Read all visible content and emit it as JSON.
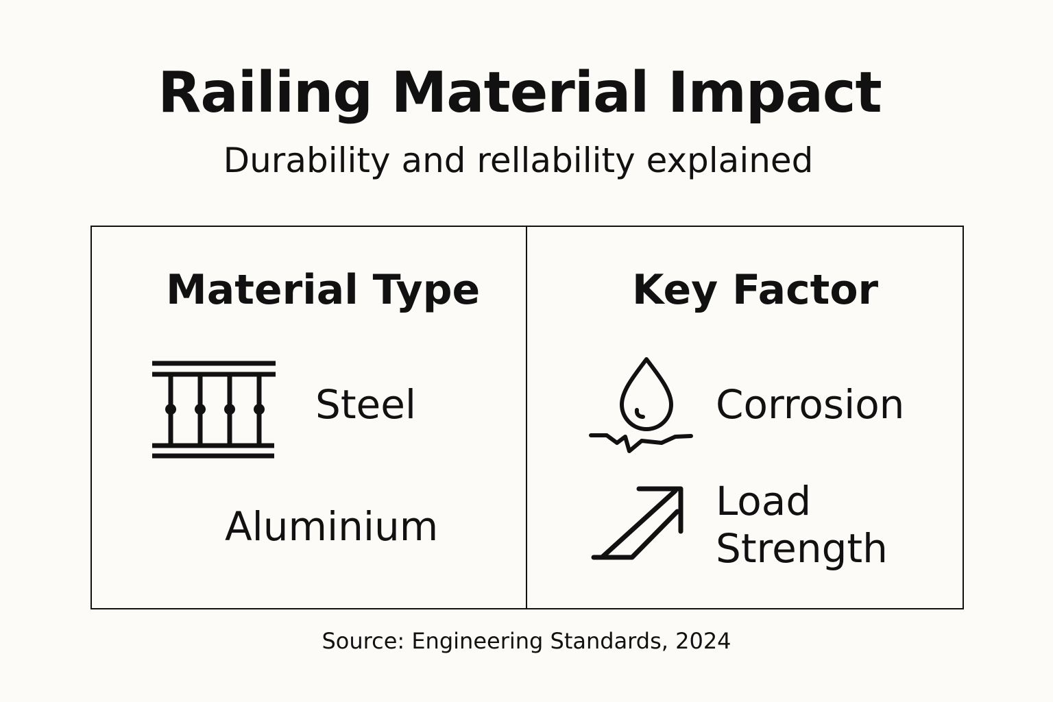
{
  "header": {
    "title": "Railing Material Impact",
    "subtitle": "Durability and rellability explained"
  },
  "columns": [
    {
      "heading": "Material Type",
      "items": [
        {
          "label": "Steel",
          "icon": "railing-icon"
        },
        {
          "label": "Aluminium"
        }
      ]
    },
    {
      "heading": "Key Factor",
      "items": [
        {
          "label": "Corrosion",
          "icon": "water-drop-icon"
        },
        {
          "label_line1": "Load",
          "label_line2": "Strength",
          "icon": "arrow-up-right-icon"
        }
      ]
    }
  ],
  "footer": {
    "source": "Source: Engineering Standards, 2024"
  },
  "colors": {
    "background": "#fcfbf7",
    "ink": "#111111"
  }
}
